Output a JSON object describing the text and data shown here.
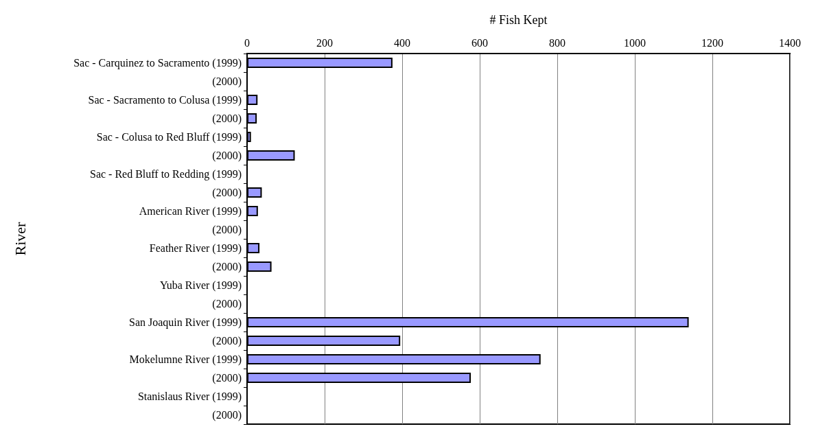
{
  "chart_data": {
    "type": "bar",
    "orientation": "horizontal",
    "xlabel": "# Fish Kept",
    "ylabel": "River",
    "categories": [
      "Sac - Carquinez to Sacramento (1999)",
      "(2000)",
      "Sac - Sacramento to Colusa (1999)",
      "(2000)",
      "Sac - Colusa to Red Bluff (1999)",
      "(2000)",
      "Sac - Red Bluff to Redding (1999)",
      "(2000)",
      "American River (1999)",
      "(2000)",
      "Feather River (1999)",
      "(2000)",
      "Yuba River (1999)",
      "(2000)",
      "San Joaquin River (1999)",
      "(2000)",
      "Mokelumne River (1999)",
      "(2000)",
      "Stanislaus River (1999)",
      "(2000)"
    ],
    "values": [
      375,
      0,
      27,
      25,
      10,
      123,
      0,
      38,
      28,
      0,
      32,
      63,
      0,
      0,
      1139,
      395,
      757,
      577,
      0,
      0
    ],
    "color": "#9999ff",
    "xlim": [
      0,
      1400
    ],
    "xticks": [
      0,
      200,
      400,
      600,
      800,
      1000,
      1200,
      1400
    ],
    "grid": "x"
  }
}
